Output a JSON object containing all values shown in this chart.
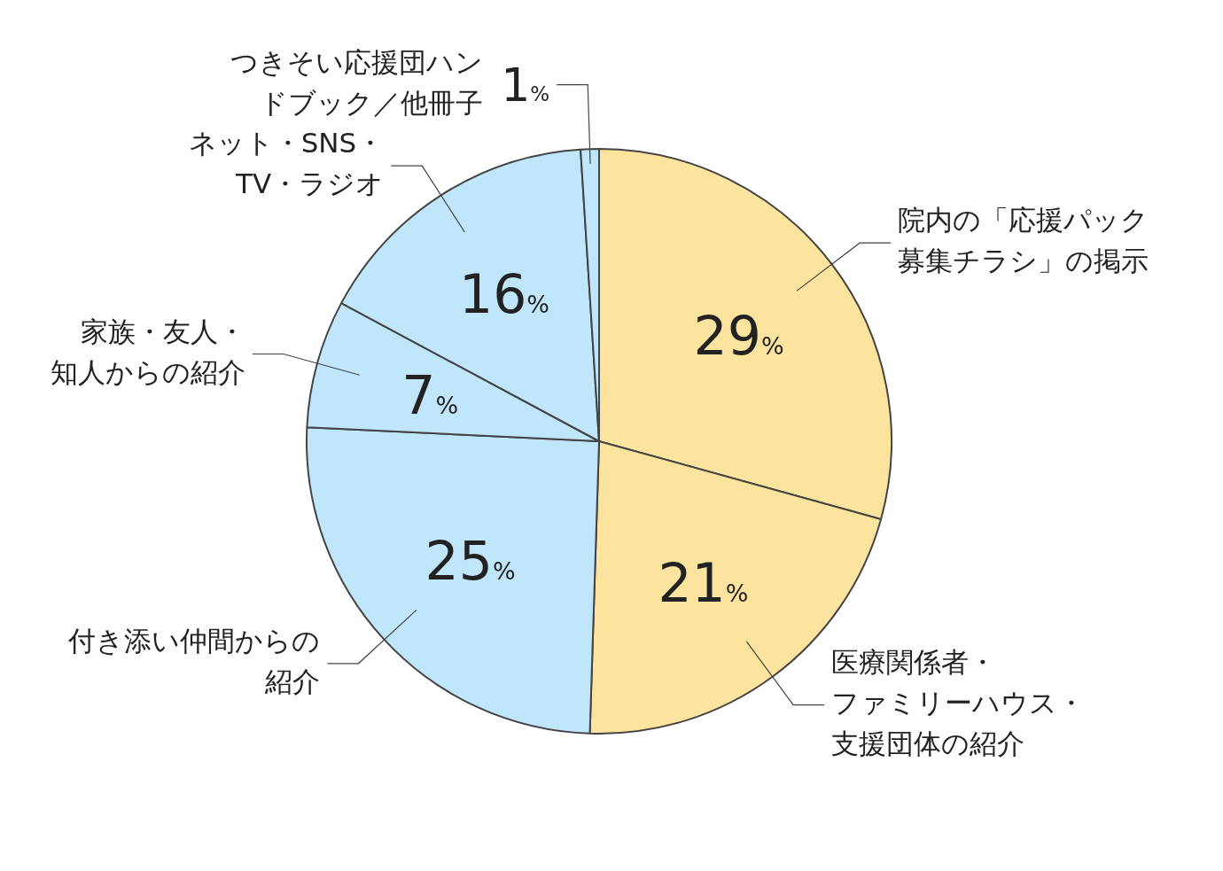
{
  "chart_data": {
    "type": "pie",
    "categories": [
      "院内の「応援パック募集チラシ」の掲示",
      "医療関係者・ファミリーハウス・支援団体の紹介",
      "付き添い仲間からの紹介",
      "家族・友人・知人からの紹介",
      "ネット・SNS・TV・ラジオ",
      "つきそい応援団ハンドブック／他冊子"
    ],
    "values": [
      29,
      21,
      25,
      7,
      16,
      1
    ],
    "value_labels": [
      "29%",
      "21%",
      "25%",
      "7%",
      "16%",
      "1%"
    ],
    "colors": [
      "#fce49e",
      "#fce49e",
      "#c0e6fb",
      "#c0e6fb",
      "#c0e6fb",
      "#c0e6fb"
    ],
    "legend": false
  }
}
